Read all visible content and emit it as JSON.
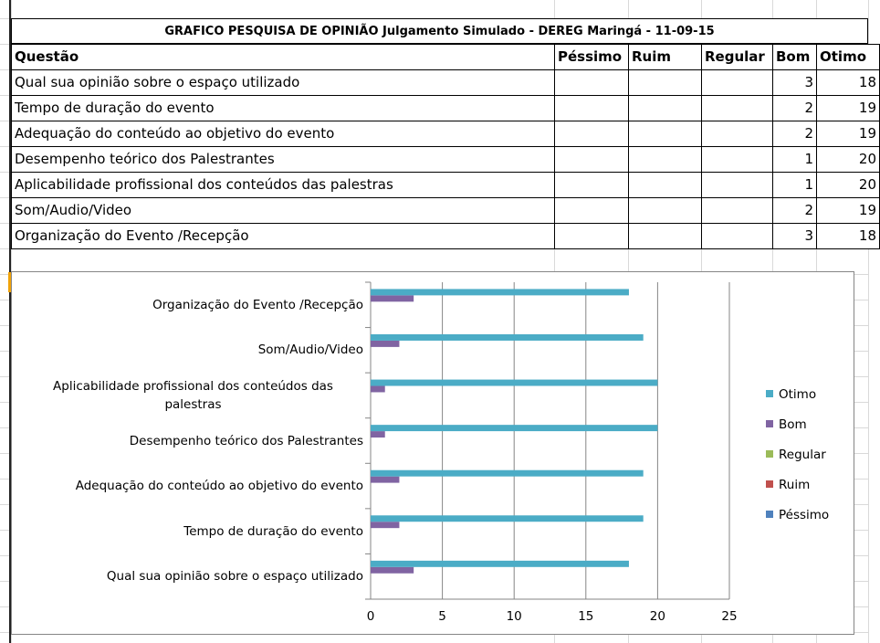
{
  "table": {
    "title": "GRAFICO PESQUISA DE OPINIÃO Julgamento Simulado - DEREG Maringá - 11-09-15",
    "header": [
      "Questão",
      "Péssimo",
      "Ruim",
      "Regular",
      "Bom",
      "Otimo"
    ],
    "rows": [
      [
        "Qual sua opinião sobre o espaço utilizado",
        null,
        null,
        null,
        "3",
        "18"
      ],
      [
        "Tempo de duração do evento",
        null,
        null,
        null,
        "2",
        "19"
      ],
      [
        "Adequação do conteúdo ao objetivo do evento",
        null,
        null,
        null,
        "2",
        "19"
      ],
      [
        "Desempenho teórico dos Palestrantes",
        null,
        null,
        null,
        "1",
        "20"
      ],
      [
        "Aplicabilidade profissional dos conteúdos das palestras",
        null,
        null,
        null,
        "1",
        "20"
      ],
      [
        "Som/Audio/Video",
        null,
        null,
        null,
        "2",
        "19"
      ],
      [
        "Organização do Evento /Recepção",
        null,
        null,
        null,
        "3",
        "18"
      ]
    ]
  },
  "chart_data": {
    "type": "bar",
    "orientation": "horizontal",
    "categories": [
      "Qual sua opinião sobre o espaço utilizado",
      "Tempo de duração do evento",
      "Adequação do conteúdo ao objetivo do evento",
      "Desempenho teórico dos Palestrantes",
      "Aplicabilidade profissional dos conteúdos das palestras",
      "Som/Audio/Video",
      "Organização do Evento /Recepção"
    ],
    "series": [
      {
        "name": "Péssimo",
        "color": "#4f81bd",
        "values": [
          null,
          null,
          null,
          null,
          null,
          null,
          null
        ]
      },
      {
        "name": "Ruim",
        "color": "#c0504d",
        "values": [
          null,
          null,
          null,
          null,
          null,
          null,
          null
        ]
      },
      {
        "name": "Regular",
        "color": "#9bbb59",
        "values": [
          null,
          null,
          null,
          null,
          null,
          null,
          null
        ]
      },
      {
        "name": "Bom",
        "color": "#8064a2",
        "values": [
          3,
          2,
          2,
          1,
          1,
          2,
          3
        ]
      },
      {
        "name": "Otimo",
        "color": "#4bacc6",
        "values": [
          18,
          19,
          19,
          20,
          20,
          19,
          18
        ]
      }
    ],
    "xlim": [
      0,
      25
    ],
    "xticks": [
      0,
      5,
      10,
      15,
      20,
      25
    ],
    "grid": true,
    "legend": "right"
  }
}
